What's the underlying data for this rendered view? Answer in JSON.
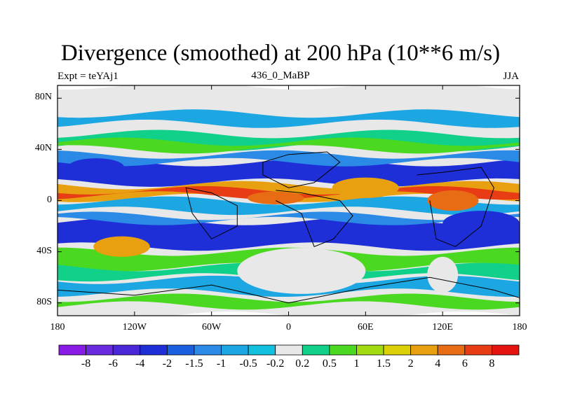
{
  "chart_data": {
    "type": "heatmap",
    "title": "Divergence (smoothed) at 200 hPa (10**6 m/s)",
    "left_string": "Expt = teYAj1",
    "center_string": "436_0_MaBP",
    "right_string": "JJA",
    "x_ticks": [
      "180",
      "120W",
      "60W",
      "0",
      "60E",
      "120E",
      "180"
    ],
    "x_tick_values": [
      -180,
      -120,
      -60,
      0,
      60,
      120,
      180
    ],
    "y_ticks": [
      "80N",
      "40N",
      "0",
      "40S",
      "80S"
    ],
    "y_tick_values": [
      80,
      40,
      0,
      -40,
      -80
    ],
    "xlim": [
      -180,
      180
    ],
    "ylim": [
      -90,
      90
    ],
    "colorbar": {
      "labels": [
        "-8",
        "-6",
        "-4",
        "-2",
        "-1.5",
        "-1",
        "-0.5",
        "-0.2",
        "0.2",
        "0.5",
        "1",
        "1.5",
        "2",
        "4",
        "6",
        "8"
      ],
      "colors": [
        "#8a1ae6",
        "#6a2ae0",
        "#4a28d8",
        "#1f2fd8",
        "#1a5fe0",
        "#2a8ae6",
        "#1ca6e2",
        "#12c0e0",
        "#e8e8e8",
        "#10d08a",
        "#4ad820",
        "#a2dc10",
        "#dcd008",
        "#e8a010",
        "#e86c14",
        "#e83c14",
        "#e41410"
      ]
    },
    "bands": [
      {
        "color": "#e8e8e8",
        "lat": [
          -90,
          90
        ]
      },
      {
        "color": "#1ca6e2",
        "lat": [
          68,
          60
        ]
      },
      {
        "color": "#10d08a",
        "lat": [
          52,
          42
        ]
      },
      {
        "color": "#4ad820",
        "lat": [
          46,
          40
        ]
      },
      {
        "color": "#1f2fd8",
        "lat": [
          30,
          14
        ]
      },
      {
        "color": "#2a8ae6",
        "lat": [
          36,
          30
        ]
      },
      {
        "color": "#e8a010",
        "lat": [
          12,
          2
        ]
      },
      {
        "color": "#e83c14",
        "lat": [
          8,
          4
        ]
      },
      {
        "color": "#1ca6e2",
        "lat": [
          0,
          -8
        ]
      },
      {
        "color": "#1f2fd8",
        "lat": [
          -16,
          -36
        ]
      },
      {
        "color": "#2a8ae6",
        "lat": [
          -12,
          -16
        ]
      },
      {
        "color": "#4ad820",
        "lat": [
          -40,
          -52
        ]
      },
      {
        "color": "#10d08a",
        "lat": [
          -52,
          -60
        ]
      },
      {
        "color": "#1ca6e2",
        "lat": [
          -62,
          -72
        ]
      },
      {
        "color": "#4ad820",
        "lat": [
          -76,
          -82
        ]
      }
    ],
    "blobs": [
      {
        "color": "#e8a010",
        "lon": -130,
        "lat": -36,
        "rlon": 22,
        "rlat": 8
      },
      {
        "color": "#e86c14",
        "lon": -10,
        "lat": 2,
        "rlon": 22,
        "rlat": 5
      },
      {
        "color": "#e8a010",
        "lon": 60,
        "lat": 10,
        "rlon": 26,
        "rlat": 8
      },
      {
        "color": "#e86c14",
        "lon": 128,
        "lat": 0,
        "rlon": 20,
        "rlat": 8
      },
      {
        "color": "#1f2fd8",
        "lon": -150,
        "lat": 26,
        "rlon": 22,
        "rlat": 7
      },
      {
        "color": "#1f2fd8",
        "lon": 150,
        "lat": -18,
        "rlon": 30,
        "rlat": 10
      },
      {
        "color": "#e8e8e8",
        "lon": 10,
        "lat": -55,
        "rlon": 50,
        "rlat": 18
      },
      {
        "color": "#e8e8e8",
        "lon": 120,
        "lat": -58,
        "rlon": 12,
        "rlat": 14
      }
    ]
  }
}
